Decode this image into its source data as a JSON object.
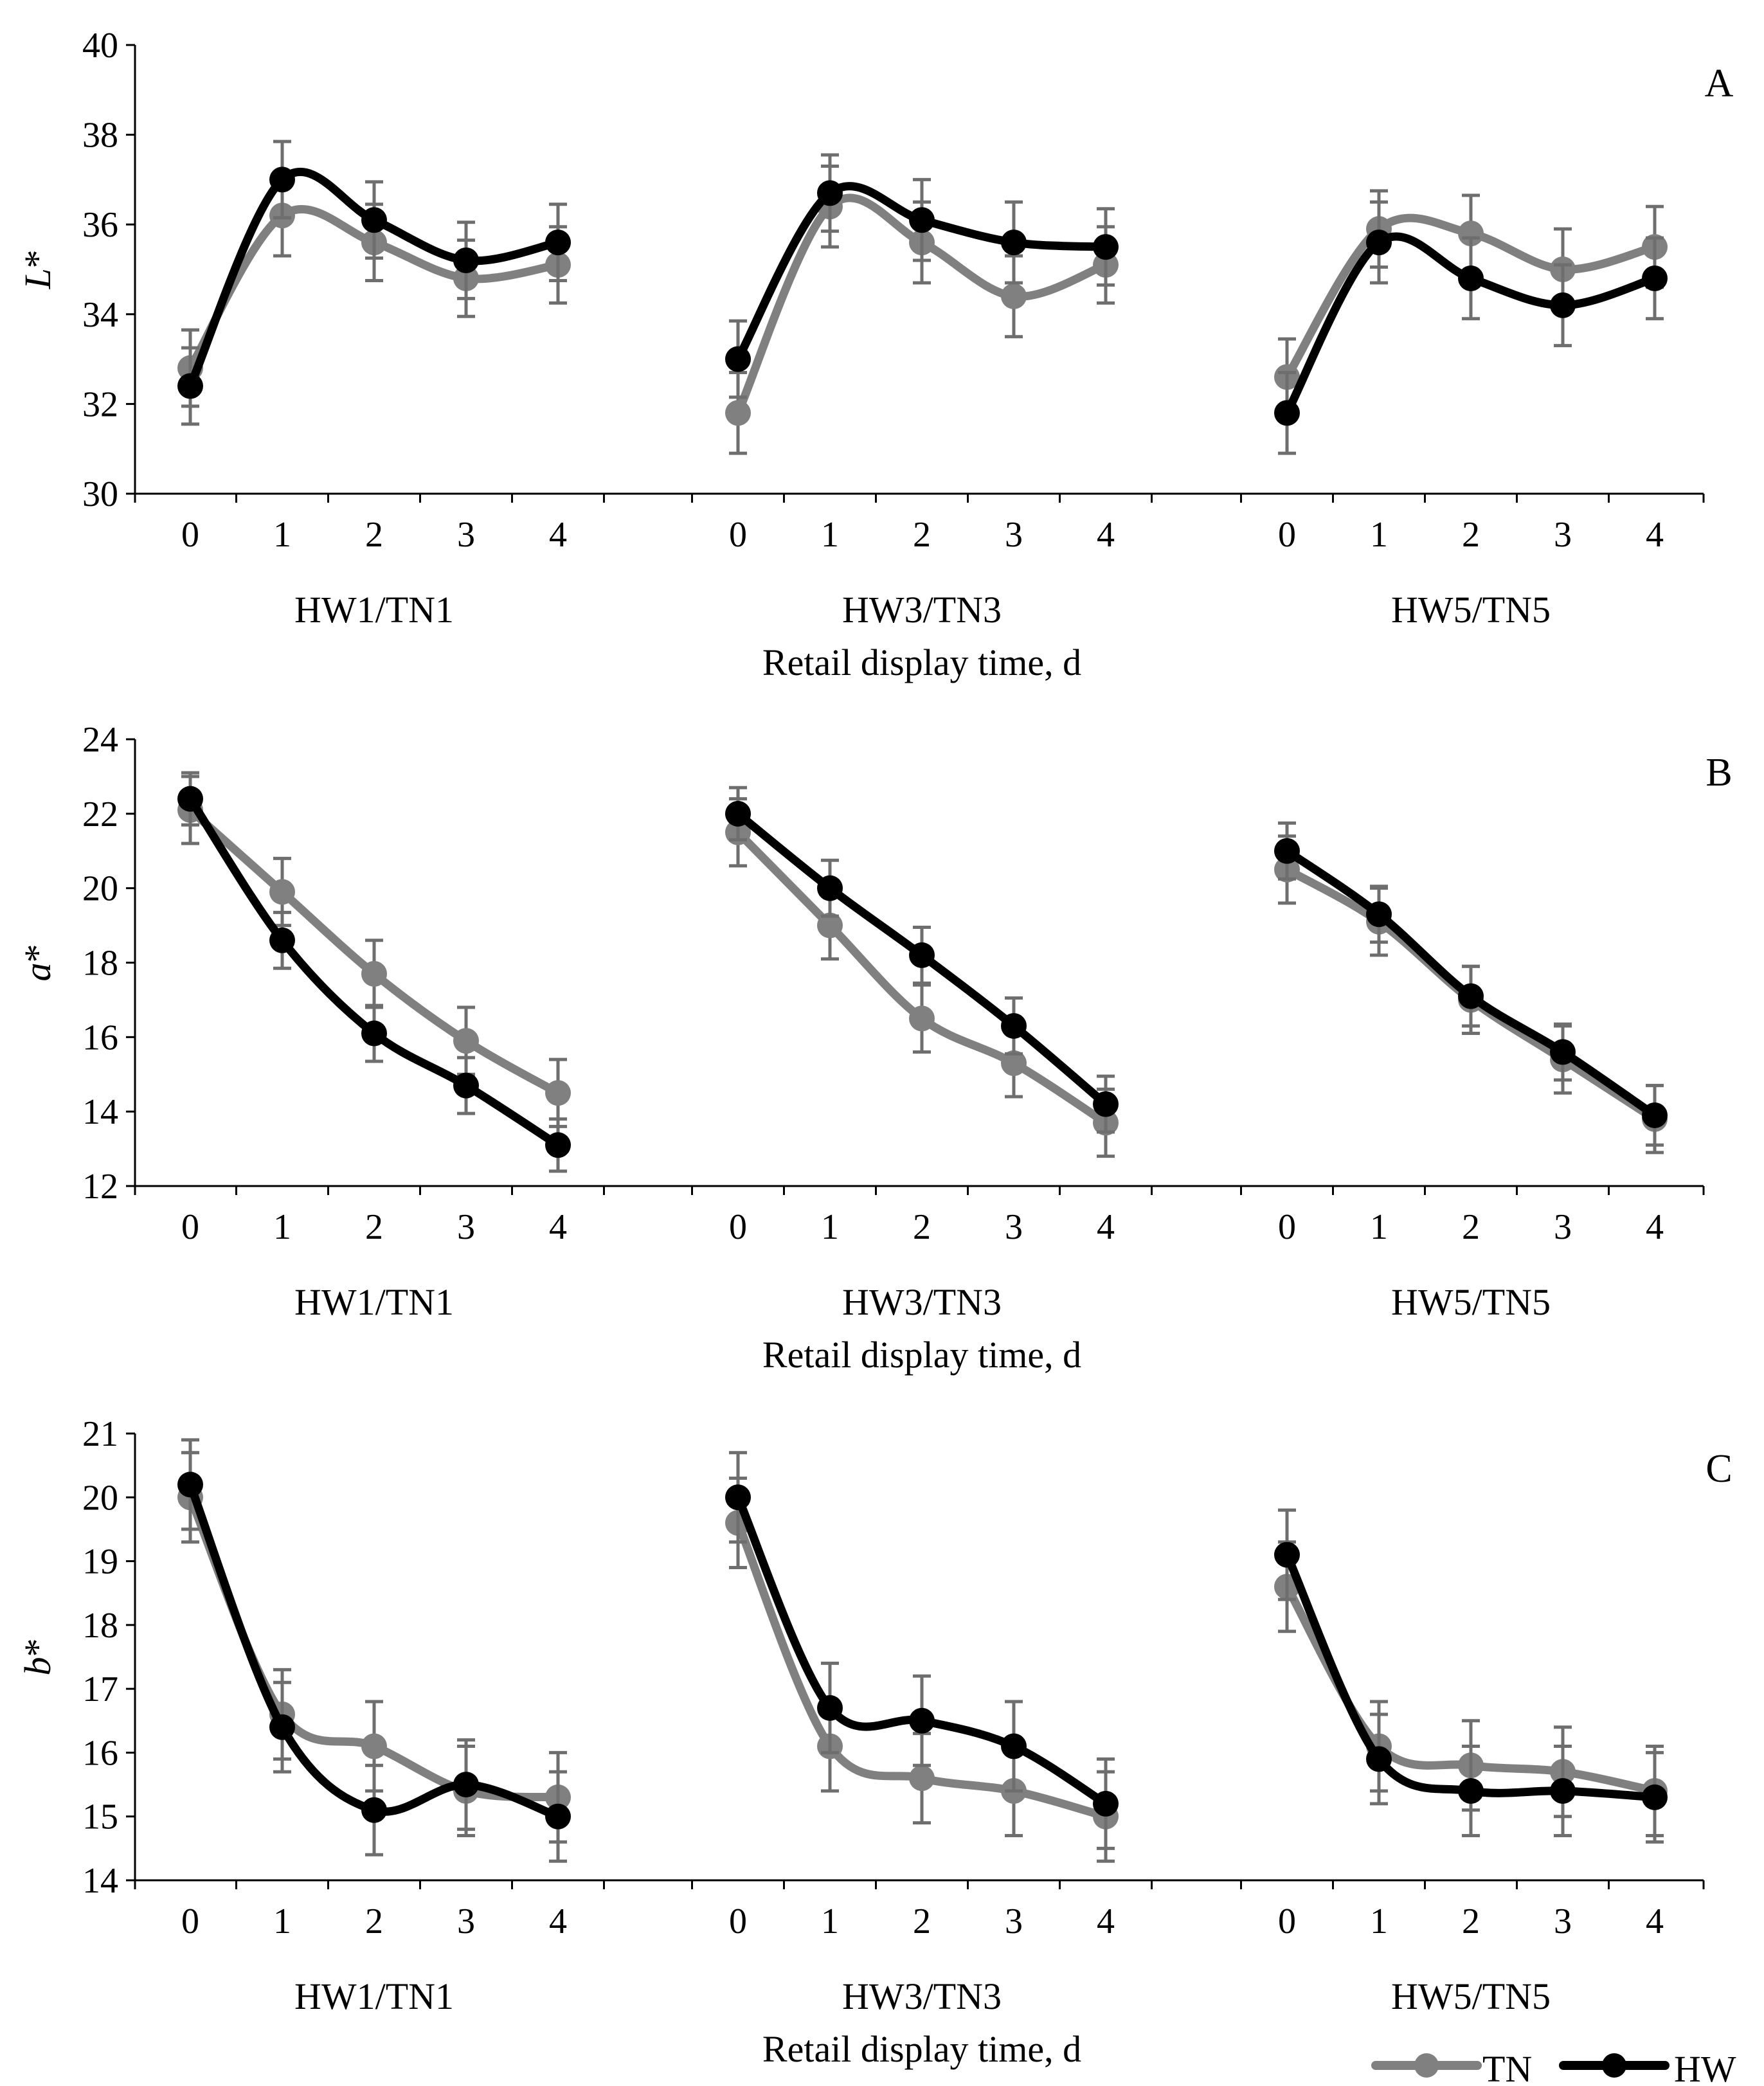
{
  "figure": {
    "x_axis_title": "Retail display time, d",
    "legend": [
      {
        "label": "TN",
        "color": "#808080"
      },
      {
        "label": "HW",
        "color": "#000000"
      }
    ]
  },
  "colors": {
    "TN": "#808080",
    "HW": "#000000",
    "error_bars": "#6e6e6e",
    "axes": "#000000"
  },
  "chart_data": [
    {
      "type": "line",
      "panel": "A",
      "ylabel": "L*",
      "ylim": [
        30,
        40
      ],
      "yticks": [
        30,
        32,
        34,
        36,
        38,
        40
      ],
      "x_ticks": [
        0,
        1,
        2,
        3,
        4
      ],
      "groups": [
        "HW1/TN1",
        "HW3/TN3",
        "HW5/TN5"
      ],
      "xlabel": "Retail display time, d",
      "series": [
        {
          "name": "TN",
          "groups": [
            {
              "values": [
                32.8,
                36.2,
                35.6,
                34.8,
                35.1
              ],
              "errors": [
                0.85,
                0.9,
                0.85,
                0.85,
                0.85
              ]
            },
            {
              "values": [
                31.8,
                36.4,
                35.6,
                34.4,
                35.1
              ],
              "errors": [
                0.9,
                0.9,
                0.9,
                0.9,
                0.85
              ]
            },
            {
              "values": [
                32.6,
                35.9,
                35.8,
                35.0,
                35.5
              ],
              "errors": [
                0.85,
                0.85,
                0.85,
                0.9,
                0.9
              ]
            }
          ]
        },
        {
          "name": "HW",
          "groups": [
            {
              "values": [
                32.4,
                37.0,
                36.1,
                35.2,
                35.6
              ],
              "errors": [
                0.85,
                0.85,
                0.85,
                0.85,
                0.85
              ]
            },
            {
              "values": [
                33.0,
                36.7,
                36.1,
                35.6,
                35.5
              ],
              "errors": [
                0.85,
                0.85,
                0.9,
                0.9,
                0.85
              ]
            },
            {
              "values": [
                31.8,
                35.6,
                34.8,
                34.2,
                34.8
              ],
              "errors": [
                0.9,
                0.9,
                0.9,
                0.9,
                0.9
              ]
            }
          ]
        }
      ]
    },
    {
      "type": "line",
      "panel": "B",
      "ylabel": "a*",
      "ylim": [
        12,
        24
      ],
      "yticks": [
        12,
        14,
        16,
        18,
        20,
        22,
        24
      ],
      "x_ticks": [
        0,
        1,
        2,
        3,
        4
      ],
      "groups": [
        "HW1/TN1",
        "HW3/TN3",
        "HW5/TN5"
      ],
      "xlabel": "Retail display time, d",
      "series": [
        {
          "name": "TN",
          "groups": [
            {
              "values": [
                22.1,
                19.9,
                17.7,
                15.9,
                14.5
              ],
              "errors": [
                0.9,
                0.9,
                0.9,
                0.9,
                0.9
              ]
            },
            {
              "values": [
                21.5,
                19.0,
                16.5,
                15.3,
                13.7
              ],
              "errors": [
                0.9,
                0.9,
                0.9,
                0.9,
                0.9
              ]
            },
            {
              "values": [
                20.5,
                19.1,
                17.0,
                15.4,
                13.8
              ],
              "errors": [
                0.9,
                0.9,
                0.9,
                0.9,
                0.9
              ]
            }
          ]
        },
        {
          "name": "HW",
          "groups": [
            {
              "values": [
                22.4,
                18.6,
                16.1,
                14.7,
                13.1
              ],
              "errors": [
                0.7,
                0.75,
                0.75,
                0.75,
                0.7
              ]
            },
            {
              "values": [
                22.0,
                20.0,
                18.2,
                16.3,
                14.2
              ],
              "errors": [
                0.7,
                0.75,
                0.75,
                0.75,
                0.75
              ]
            },
            {
              "values": [
                21.0,
                19.3,
                17.1,
                15.6,
                13.9
              ],
              "errors": [
                0.75,
                0.75,
                0.8,
                0.75,
                0.8
              ]
            }
          ]
        }
      ]
    },
    {
      "type": "line",
      "panel": "C",
      "ylabel": "b*",
      "ylim": [
        14,
        21
      ],
      "yticks": [
        14,
        15,
        16,
        17,
        18,
        19,
        20,
        21
      ],
      "x_ticks": [
        0,
        1,
        2,
        3,
        4
      ],
      "groups": [
        "HW1/TN1",
        "HW3/TN3",
        "HW5/TN5"
      ],
      "xlabel": "Retail display time, d",
      "series": [
        {
          "name": "TN",
          "groups": [
            {
              "values": [
                20.0,
                16.6,
                16.1,
                15.4,
                15.3
              ],
              "errors": [
                0.7,
                0.7,
                0.7,
                0.7,
                0.7
              ]
            },
            {
              "values": [
                19.6,
                16.1,
                15.6,
                15.4,
                15.0
              ],
              "errors": [
                0.7,
                0.7,
                0.7,
                0.7,
                0.7
              ]
            },
            {
              "values": [
                18.6,
                16.1,
                15.8,
                15.7,
                15.4
              ],
              "errors": [
                0.7,
                0.7,
                0.7,
                0.7,
                0.7
              ]
            }
          ]
        },
        {
          "name": "HW",
          "groups": [
            {
              "values": [
                20.2,
                16.4,
                15.1,
                15.5,
                15.0
              ],
              "errors": [
                0.7,
                0.7,
                0.7,
                0.7,
                0.7
              ]
            },
            {
              "values": [
                20.0,
                16.7,
                16.5,
                16.1,
                15.2
              ],
              "errors": [
                0.7,
                0.7,
                0.7,
                0.7,
                0.7
              ]
            },
            {
              "values": [
                19.1,
                15.9,
                15.4,
                15.4,
                15.3
              ],
              "errors": [
                0.7,
                0.7,
                0.7,
                0.7,
                0.7
              ]
            }
          ]
        }
      ]
    }
  ]
}
